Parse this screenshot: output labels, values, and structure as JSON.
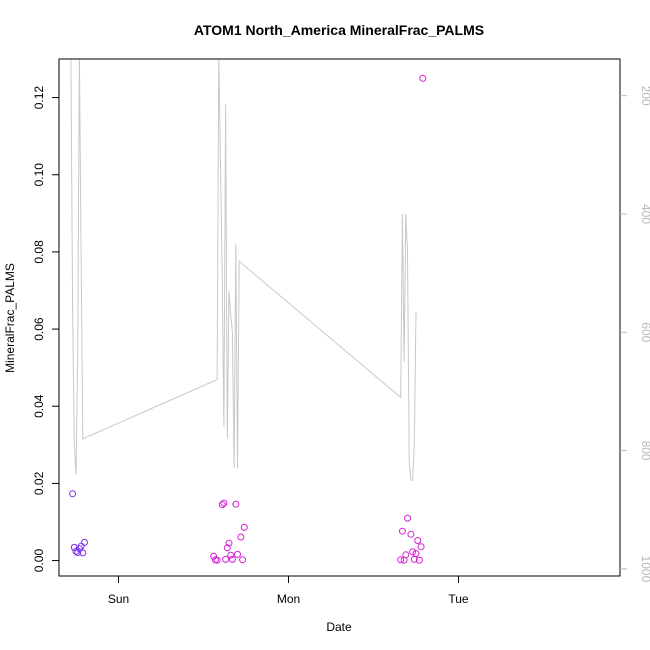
{
  "chart_data": {
    "type": "scatter",
    "title": "ATOM1 North_America MineralFrac_PALMS",
    "xlabel": "Date",
    "ylabel": "MineralFrac_PALMS",
    "x_unit": "days (Sun 00:00 = 1)",
    "xlim": [
      0.65,
      3.95
    ],
    "x_ticks": [
      {
        "value": 1,
        "label": "Sun"
      },
      {
        "value": 2,
        "label": "Mon"
      },
      {
        "value": 3,
        "label": "Tue"
      }
    ],
    "ylim": [
      -0.004,
      0.13
    ],
    "y_ticks": [
      0.0,
      0.02,
      0.04,
      0.06,
      0.08,
      0.1,
      0.12
    ],
    "y_tick_labels": [
      "0.00",
      "0.02",
      "0.04",
      "0.06",
      "0.08",
      "0.10",
      "0.12"
    ],
    "y2_label": "",
    "y2_ticks": [
      200,
      400,
      600,
      800,
      1000
    ],
    "y2_tick_labels": [
      "200",
      "400",
      "600",
      "800",
      "1000"
    ],
    "y2_lim": [
      1012,
      138
    ],
    "y2_reversed": true,
    "grid": false,
    "series": [
      {
        "color": "#7a2ff0",
        "points": [
          [
            0.73,
            0.0173
          ],
          [
            0.74,
            0.0034
          ],
          [
            0.75,
            0.0024
          ],
          [
            0.76,
            0.0021
          ],
          [
            0.77,
            0.0031
          ],
          [
            0.78,
            0.0037
          ],
          [
            0.79,
            0.002
          ],
          [
            0.8,
            0.0047
          ]
        ]
      },
      {
        "color": "#d61fd6",
        "points": [
          [
            1.56,
            0.0011
          ],
          [
            1.57,
            0.0002
          ],
          [
            1.58,
            0.0001
          ],
          [
            1.61,
            0.0145
          ],
          [
            1.62,
            0.0149
          ],
          [
            1.63,
            0.0003
          ],
          [
            1.64,
            0.0033
          ],
          [
            1.65,
            0.0045
          ],
          [
            1.66,
            0.0014
          ],
          [
            1.67,
            0.0003
          ],
          [
            1.69,
            0.0146
          ],
          [
            1.7,
            0.0016
          ],
          [
            1.72,
            0.0061
          ],
          [
            1.73,
            0.0002
          ],
          [
            1.74,
            0.0086
          ],
          [
            2.66,
            0.0002
          ],
          [
            2.67,
            0.0076
          ],
          [
            2.68,
            0.0001
          ],
          [
            2.69,
            0.0015
          ],
          [
            2.7,
            0.011
          ],
          [
            2.72,
            0.0068
          ],
          [
            2.73,
            0.0023
          ],
          [
            2.74,
            0.0003
          ],
          [
            2.75,
            0.0018
          ],
          [
            2.76,
            0.0052
          ],
          [
            2.77,
            0.0001
          ],
          [
            2.78,
            0.0036
          ],
          [
            2.79,
            0.125
          ]
        ]
      }
    ],
    "line_series": {
      "axis": "right",
      "color": "#c8c8c8",
      "points": [
        [
          0.72,
          130
        ],
        [
          0.73,
          560
        ],
        [
          0.74,
          790
        ],
        [
          0.75,
          840
        ],
        [
          0.76,
          640
        ],
        [
          0.77,
          130
        ],
        [
          0.78,
          470
        ],
        [
          0.79,
          780
        ],
        [
          1.58,
          680
        ],
        [
          1.59,
          130
        ],
        [
          1.61,
          500
        ],
        [
          1.62,
          760
        ],
        [
          1.63,
          215
        ],
        [
          1.64,
          780
        ],
        [
          1.65,
          530
        ],
        [
          1.66,
          570
        ],
        [
          1.67,
          600
        ],
        [
          1.68,
          830
        ],
        [
          1.69,
          450
        ],
        [
          1.7,
          830
        ],
        [
          1.71,
          480
        ],
        [
          2.66,
          710
        ],
        [
          2.67,
          400
        ],
        [
          2.68,
          650
        ],
        [
          2.69,
          400
        ],
        [
          2.7,
          460
        ],
        [
          2.71,
          820
        ],
        [
          2.72,
          850
        ],
        [
          2.73,
          850
        ],
        [
          2.74,
          790
        ],
        [
          2.75,
          565
        ]
      ]
    }
  }
}
